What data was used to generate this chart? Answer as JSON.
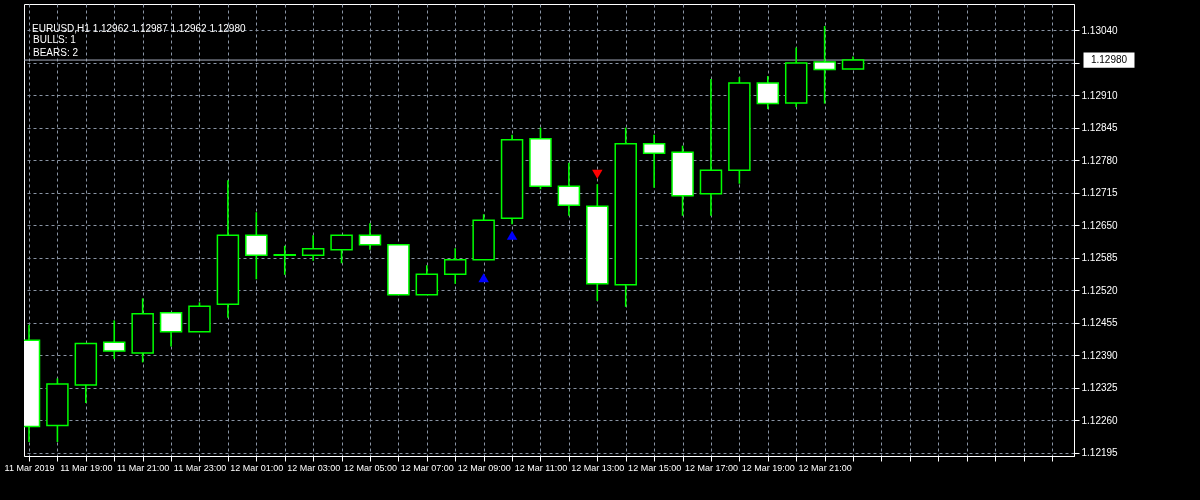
{
  "chart_data": {
    "type": "candlestick",
    "title": "EURUSD,H1  1.12962 1.12987 1.12962 1.12980",
    "annotations": [
      "BULLS: 1",
      "BEARS: 2"
    ],
    "color": "#00ff00",
    "grid": true,
    "x": [
      "2019-03-11T17:00",
      "2019-03-11T18:00",
      "2019-03-11T19:00",
      "2019-03-11T20:00",
      "2019-03-11T21:00",
      "2019-03-11T22:00",
      "2019-03-11T23:00",
      "2019-03-12T00:00",
      "2019-03-12T01:00",
      "2019-03-12T02:00",
      "2019-03-12T03:00",
      "2019-03-12T04:00",
      "2019-03-12T05:00",
      "2019-03-12T06:00",
      "2019-03-12T07:00",
      "2019-03-12T08:00",
      "2019-03-12T09:00",
      "2019-03-12T10:00",
      "2019-03-12T11:00",
      "2019-03-12T12:00",
      "2019-03-12T13:00",
      "2019-03-12T14:00",
      "2019-03-12T15:00",
      "2019-03-12T16:00",
      "2019-03-12T17:00",
      "2019-03-12T18:00",
      "2019-03-12T19:00",
      "2019-03-12T20:00",
      "2019-03-12T21:00",
      "2019-03-12T22:00"
    ],
    "ohlc": [
      [
        1.1242,
        1.12451,
        1.12217,
        1.12248
      ],
      [
        1.1225,
        1.12344,
        1.12217,
        1.12333
      ],
      [
        1.12331,
        1.12414,
        1.12295,
        1.12414
      ],
      [
        1.12416,
        1.1246,
        1.12383,
        1.12399
      ],
      [
        1.12395,
        1.12504,
        1.12376,
        1.12473
      ],
      [
        1.12475,
        1.12475,
        1.12408,
        1.12437
      ],
      [
        1.12437,
        1.12496,
        1.12437,
        1.12488
      ],
      [
        1.12492,
        1.1274,
        1.12465,
        1.1263
      ],
      [
        1.1263,
        1.12676,
        1.12542,
        1.1259
      ],
      [
        1.1259,
        1.12609,
        1.12551,
        1.12591
      ],
      [
        1.1259,
        1.1263,
        1.12579,
        1.12603
      ],
      [
        1.12601,
        1.1263,
        1.12574,
        1.1263
      ],
      [
        1.1263,
        1.12654,
        1.12601,
        1.12611
      ],
      [
        1.12611,
        1.12611,
        1.12511,
        1.12511
      ],
      [
        1.12511,
        1.1257,
        1.12511,
        1.12552
      ],
      [
        1.12552,
        1.12604,
        1.12533,
        1.12581
      ],
      [
        1.12581,
        1.12672,
        1.12581,
        1.1266
      ],
      [
        1.12664,
        1.12831,
        1.12652,
        1.12821
      ],
      [
        1.12823,
        1.12845,
        1.12722,
        1.12728
      ],
      [
        1.12728,
        1.12775,
        1.12669,
        1.1269
      ],
      [
        1.12688,
        1.12732,
        1.12499,
        1.12533
      ],
      [
        1.12531,
        1.12845,
        1.12487,
        1.12813
      ],
      [
        1.12813,
        1.12831,
        1.12725,
        1.12794
      ],
      [
        1.12796,
        1.12809,
        1.12669,
        1.12709
      ],
      [
        1.12713,
        1.12942,
        1.12669,
        1.1276
      ],
      [
        1.1276,
        1.12946,
        1.12733,
        1.12934
      ],
      [
        1.12934,
        1.12948,
        1.12882,
        1.12893
      ],
      [
        1.12894,
        1.13005,
        1.12886,
        1.12974
      ],
      [
        1.12976,
        1.13048,
        1.12893,
        1.12961
      ],
      [
        1.12962,
        1.12987,
        1.12962,
        1.1298
      ]
    ],
    "series": [
      {
        "type": "scatter",
        "x": [
          "2019-03-12T09:00",
          "2019-03-12T10:00"
        ],
        "values": [
          1.12545,
          1.1263
        ],
        "color": "#0000ff",
        "marker": "triangle"
      },
      {
        "type": "scatter",
        "x": [
          "2019-03-12T13:00"
        ],
        "values": [
          1.12752
        ],
        "color": "#ff0000",
        "marker": "triangle-down"
      }
    ],
    "ref_lines": [
      {
        "axis": "y",
        "value": 1.1298,
        "label": "1.12980",
        "color": "#a8b0c0"
      }
    ],
    "xlim": [
      "2019-03-11T17:00",
      "2019-03-13T05:36"
    ],
    "xticks": [
      {
        "value": "2019-03-11T17:00",
        "label": "11 Mar 2019"
      },
      {
        "value": "2019-03-11T18:00",
        "label": null
      },
      {
        "value": "2019-03-11T19:00",
        "label": "11 Mar 19:00"
      },
      {
        "value": "2019-03-11T20:00",
        "label": null
      },
      {
        "value": "2019-03-11T21:00",
        "label": "11 Mar 21:00"
      },
      {
        "value": "2019-03-11T22:00",
        "label": null
      },
      {
        "value": "2019-03-11T23:00",
        "label": "11 Mar 23:00"
      },
      {
        "value": "2019-03-12T00:00",
        "label": null
      },
      {
        "value": "2019-03-12T01:00",
        "label": "12 Mar 01:00"
      },
      {
        "value": "2019-03-12T02:00",
        "label": null
      },
      {
        "value": "2019-03-12T03:00",
        "label": "12 Mar 03:00"
      },
      {
        "value": "2019-03-12T04:00",
        "label": null
      },
      {
        "value": "2019-03-12T05:00",
        "label": "12 Mar 05:00"
      },
      {
        "value": "2019-03-12T06:00",
        "label": null
      },
      {
        "value": "2019-03-12T07:00",
        "label": "12 Mar 07:00"
      },
      {
        "value": "2019-03-12T08:00",
        "label": null
      },
      {
        "value": "2019-03-12T09:00",
        "label": "12 Mar 09:00"
      },
      {
        "value": "2019-03-12T10:00",
        "label": null
      },
      {
        "value": "2019-03-12T11:00",
        "label": "12 Mar 11:00"
      },
      {
        "value": "2019-03-12T12:00",
        "label": null
      },
      {
        "value": "2019-03-12T13:00",
        "label": "12 Mar 13:00"
      },
      {
        "value": "2019-03-12T14:00",
        "label": null
      },
      {
        "value": "2019-03-12T15:00",
        "label": "12 Mar 15:00"
      },
      {
        "value": "2019-03-12T16:00",
        "label": null
      },
      {
        "value": "2019-03-12T17:00",
        "label": "12 Mar 17:00"
      },
      {
        "value": "2019-03-12T18:00",
        "label": null
      },
      {
        "value": "2019-03-12T19:00",
        "label": "12 Mar 19:00"
      },
      {
        "value": "2019-03-12T20:00",
        "label": null
      },
      {
        "value": "2019-03-12T21:00",
        "label": "12 Mar 21:00"
      },
      {
        "value": "2019-03-12T22:00",
        "label": null
      },
      {
        "value": "2019-03-12T23:00",
        "label": null
      },
      {
        "value": "2019-03-13T00:00",
        "label": null
      },
      {
        "value": "2019-03-13T01:00",
        "label": null
      },
      {
        "value": "2019-03-13T02:00",
        "label": null
      },
      {
        "value": "2019-03-13T03:00",
        "label": null
      },
      {
        "value": "2019-03-13T04:00",
        "label": null
      },
      {
        "value": "2019-03-13T05:00",
        "label": null
      }
    ],
    "ylim": [
      1.12189,
      1.13092
    ],
    "yticks": [
      {
        "value": 1.12195,
        "label": "1.12195"
      },
      {
        "value": 1.1226,
        "label": "1.12260"
      },
      {
        "value": 1.12325,
        "label": "1.12325"
      },
      {
        "value": 1.1239,
        "label": "1.12390"
      },
      {
        "value": 1.12455,
        "label": "1.12455"
      },
      {
        "value": 1.1252,
        "label": "1.12520"
      },
      {
        "value": 1.12585,
        "label": "1.12585"
      },
      {
        "value": 1.1265,
        "label": "1.12650"
      },
      {
        "value": 1.12715,
        "label": "1.12715"
      },
      {
        "value": 1.1278,
        "label": "1.12780"
      },
      {
        "value": 1.12845,
        "label": "1.12845"
      },
      {
        "value": 1.1291,
        "label": "1.12910"
      },
      {
        "value": 1.12975,
        "label": null
      },
      {
        "value": 1.1304,
        "label": "1.13040"
      }
    ]
  }
}
